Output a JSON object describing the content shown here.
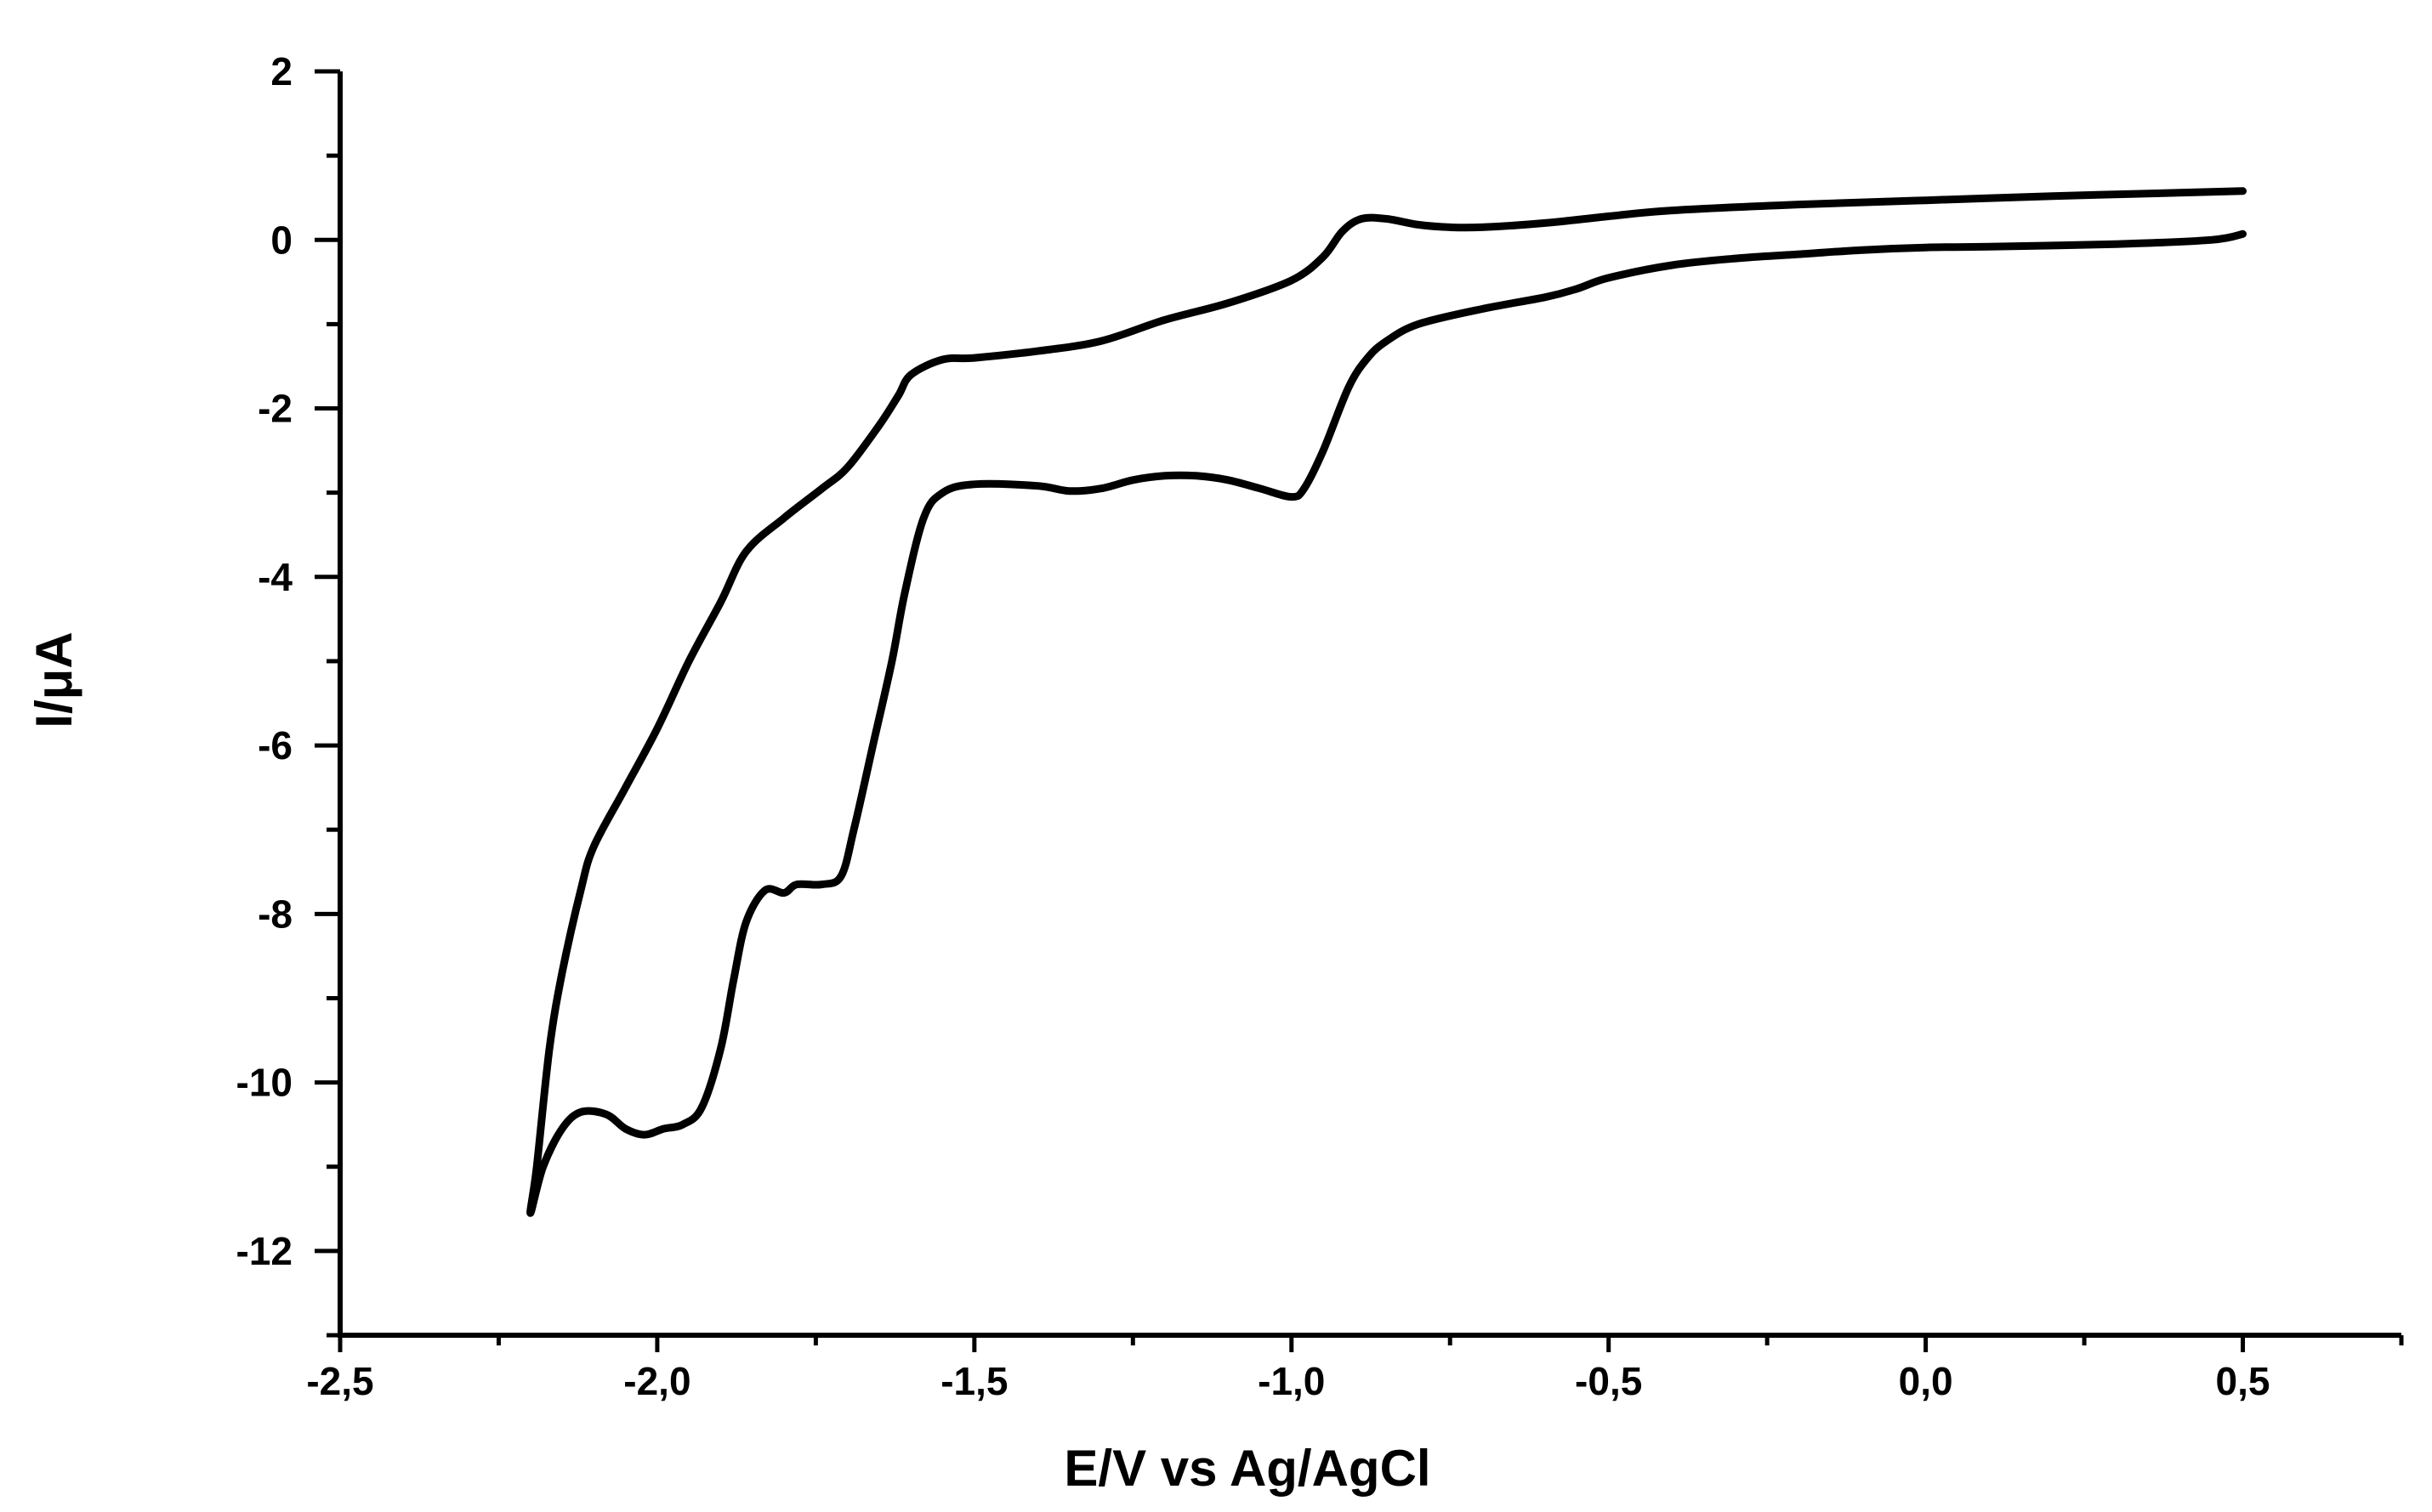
{
  "chart_data": {
    "type": "line",
    "title": "",
    "xlabel": "E/V vs Ag/AgCl",
    "ylabel": "I/μA",
    "xlim": [
      -2.5,
      0.75
    ],
    "ylim": [
      -13,
      2
    ],
    "x_ticks": [
      -2.5,
      -2.0,
      -1.5,
      -1.0,
      -0.5,
      0.0,
      0.5
    ],
    "x_tick_labels": [
      "-2,5",
      "-2,0",
      "-1,5",
      "-1,0",
      "-0,5",
      "0,0",
      "0,5"
    ],
    "y_ticks": [
      2,
      0,
      -2,
      -4,
      -6,
      -8,
      -10,
      -12
    ],
    "y_tick_labels": [
      "2",
      "0",
      "-2",
      "-4",
      "-6",
      "-8",
      "-10",
      "-12"
    ],
    "x_minor_step": 0.25,
    "y_minor_step": 1,
    "grid": false,
    "legend": "none",
    "line_color": "#000000",
    "series": [
      {
        "points": [
          [
            0.5,
            0.07
          ],
          [
            0.45,
            0.0
          ],
          [
            0.3,
            -0.05
          ],
          [
            0.1,
            -0.08
          ],
          [
            0.0,
            -0.09
          ],
          [
            -0.1,
            -0.12
          ],
          [
            -0.2,
            -0.17
          ],
          [
            -0.3,
            -0.22
          ],
          [
            -0.4,
            -0.3
          ],
          [
            -0.5,
            -0.45
          ],
          [
            -0.55,
            -0.58
          ],
          [
            -0.6,
            -0.68
          ],
          [
            -0.7,
            -0.82
          ],
          [
            -0.8,
            -1.0
          ],
          [
            -0.85,
            -1.2
          ],
          [
            -0.88,
            -1.4
          ],
          [
            -0.91,
            -1.75
          ],
          [
            -0.95,
            -2.5
          ],
          [
            -0.98,
            -2.95
          ],
          [
            -1.0,
            -3.05
          ],
          [
            -1.05,
            -2.95
          ],
          [
            -1.1,
            -2.85
          ],
          [
            -1.15,
            -2.8
          ],
          [
            -1.2,
            -2.8
          ],
          [
            -1.25,
            -2.85
          ],
          [
            -1.3,
            -2.95
          ],
          [
            -1.35,
            -2.98
          ],
          [
            -1.4,
            -2.92
          ],
          [
            -1.5,
            -2.9
          ],
          [
            -1.55,
            -3.0
          ],
          [
            -1.58,
            -3.3
          ],
          [
            -1.61,
            -4.2
          ],
          [
            -1.63,
            -5.0
          ],
          [
            -1.66,
            -6.0
          ],
          [
            -1.69,
            -7.0
          ],
          [
            -1.71,
            -7.55
          ],
          [
            -1.74,
            -7.65
          ],
          [
            -1.78,
            -7.65
          ],
          [
            -1.8,
            -7.75
          ],
          [
            -1.83,
            -7.72
          ],
          [
            -1.86,
            -8.1
          ],
          [
            -1.88,
            -8.8
          ],
          [
            -1.9,
            -9.6
          ],
          [
            -1.93,
            -10.3
          ],
          [
            -1.96,
            -10.5
          ],
          [
            -1.99,
            -10.55
          ],
          [
            -2.02,
            -10.62
          ],
          [
            -2.05,
            -10.55
          ],
          [
            -2.08,
            -10.38
          ],
          [
            -2.12,
            -10.35
          ],
          [
            -2.15,
            -10.55
          ],
          [
            -2.18,
            -11.0
          ],
          [
            -2.2,
            -11.55
          ],
          [
            -2.19,
            -11.0
          ],
          [
            -2.17,
            -9.6
          ],
          [
            -2.15,
            -8.7
          ],
          [
            -2.12,
            -7.7
          ],
          [
            -2.1,
            -7.2
          ],
          [
            -2.05,
            -6.5
          ],
          [
            -2.0,
            -5.8
          ],
          [
            -1.95,
            -5.0
          ],
          [
            -1.9,
            -4.3
          ],
          [
            -1.86,
            -3.7
          ],
          [
            -1.8,
            -3.3
          ],
          [
            -1.74,
            -2.95
          ],
          [
            -1.7,
            -2.7
          ],
          [
            -1.65,
            -2.2
          ],
          [
            -1.62,
            -1.85
          ],
          [
            -1.6,
            -1.6
          ],
          [
            -1.55,
            -1.42
          ],
          [
            -1.5,
            -1.4
          ],
          [
            -1.4,
            -1.32
          ],
          [
            -1.3,
            -1.2
          ],
          [
            -1.2,
            -0.95
          ],
          [
            -1.1,
            -0.75
          ],
          [
            -1.0,
            -0.48
          ],
          [
            -0.95,
            -0.2
          ],
          [
            -0.92,
            0.1
          ],
          [
            -0.89,
            0.25
          ],
          [
            -0.85,
            0.25
          ],
          [
            -0.8,
            0.18
          ],
          [
            -0.75,
            0.15
          ],
          [
            -0.7,
            0.15
          ],
          [
            -0.6,
            0.2
          ],
          [
            -0.5,
            0.28
          ],
          [
            -0.4,
            0.35
          ],
          [
            -0.2,
            0.42
          ],
          [
            0.0,
            0.47
          ],
          [
            0.2,
            0.52
          ],
          [
            0.4,
            0.56
          ],
          [
            0.5,
            0.58
          ]
        ]
      }
    ]
  }
}
